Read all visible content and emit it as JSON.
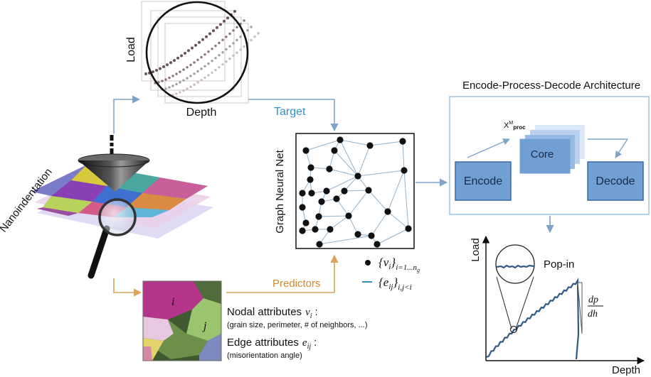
{
  "top_plot": {
    "xlabel": "Depth",
    "ylabel": "Load"
  },
  "nanoindentation": {
    "label": "Nanoindentation"
  },
  "arrows": {
    "target_label": "Target",
    "predictors_label": "Predictors"
  },
  "gnn": {
    "ylabel": "Graph Neural Net"
  },
  "legend": {
    "node_main": "{v",
    "node_sub": "i",
    "node_close": "}",
    "node_range": "i=1...n",
    "node_range_sub": "g",
    "edge_main": "{e",
    "edge_sub": "ij",
    "edge_close": "}",
    "edge_range": "i,j<i"
  },
  "micro": {
    "grain_i": "i",
    "grain_j": "j",
    "nodal_title": "Nodal attributes",
    "nodal_var": "v",
    "nodal_var_sub": "i",
    "nodal_colon": ":",
    "nodal_desc": "(grain size, perimeter, # of neighbors, ...)",
    "edge_title": "Edge attributes",
    "edge_var": "e",
    "edge_var_sub": "ij",
    "edge_colon": ":",
    "edge_desc": "(misorientation angle)"
  },
  "arch": {
    "title": "Encode-Process-Decode Architecture",
    "encode": "Encode",
    "core": "Core",
    "decode": "Decode",
    "loop_label": "X",
    "loop_sup": "M",
    "loop_sub": "proc"
  },
  "result_plot": {
    "ylabel": "Load",
    "xlabel": "Depth",
    "popin": "Pop-in",
    "slope_top": "dp",
    "slope_bottom": "dh"
  },
  "colors": {
    "arrow_blue": "#7fa3c8",
    "arrow_orange": "#d9a35a",
    "box_fill": "#6f9fd3",
    "box_border": "#3b6aa8",
    "panel_border": "#9cc4e4",
    "curve": "#2f5a86"
  }
}
